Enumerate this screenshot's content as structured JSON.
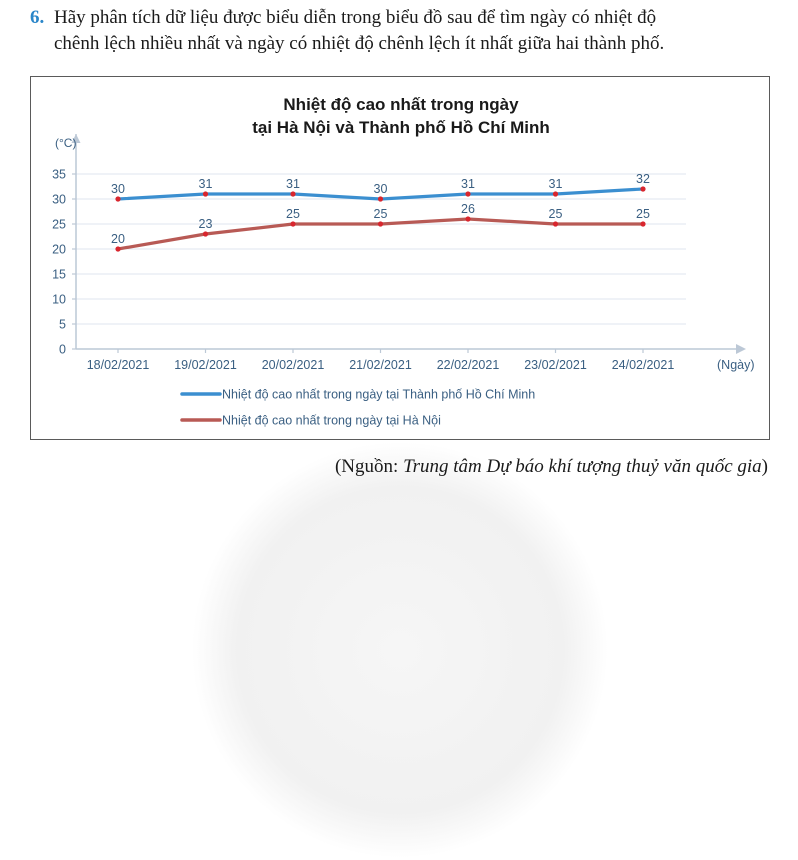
{
  "question": {
    "number": "6.",
    "line1": "Hãy phân tích dữ liệu được biểu diễn trong biểu đồ sau để tìm ngày có nhiệt độ",
    "line2": "chênh lệch nhiều nhất và ngày có nhiệt độ chênh lệch ít nhất giữa hai thành phố."
  },
  "chart_data": {
    "type": "line",
    "title_line1": "Nhiệt độ cao nhất trong ngày",
    "title_line2": "tại Hà Nội và Thành phố Hồ Chí Minh",
    "ylabel": "(°C)",
    "xlabel": "(Ngày)",
    "ylim": [
      0,
      35
    ],
    "yticks": [
      0,
      5,
      10,
      15,
      20,
      25,
      30,
      35
    ],
    "grid": true,
    "legend_position": "bottom-left",
    "categories": [
      "18/02/2021",
      "19/02/2021",
      "20/02/2021",
      "21/02/2021",
      "22/02/2021",
      "23/02/2021",
      "24/02/2021"
    ],
    "series": [
      {
        "name": "Nhiệt độ cao nhất trong ngày tại Thành phố Hồ Chí Minh",
        "color": "#3b8fd0",
        "values": [
          30,
          31,
          31,
          30,
          31,
          31,
          32
        ]
      },
      {
        "name": "Nhiệt độ cao nhất trong ngày tại Hà Nội",
        "color": "#b85a55",
        "values": [
          20,
          23,
          25,
          25,
          26,
          25,
          25
        ]
      }
    ],
    "marker_color": "#d8262e",
    "axis_color": "#bcc8d6",
    "grid_color": "#dfe6ef",
    "label_color": "#3a5f82"
  },
  "source": {
    "prefix": "(Nguồn: ",
    "name": "Trung tâm Dự báo khí tượng thuỷ văn quốc gia",
    "suffix": ")"
  }
}
